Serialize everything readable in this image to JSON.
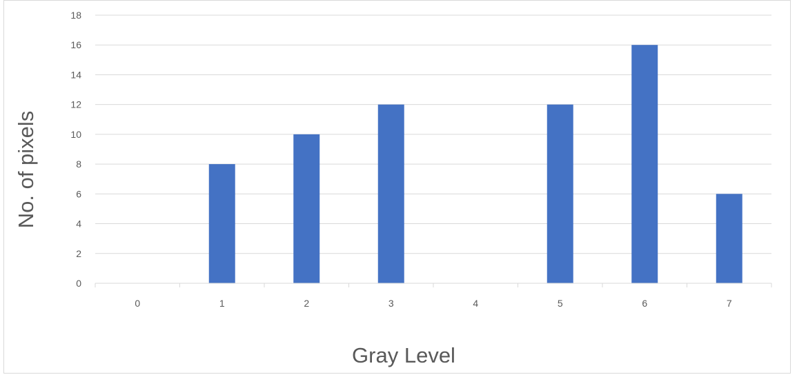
{
  "chart_data": {
    "type": "bar",
    "categories": [
      "0",
      "1",
      "2",
      "3",
      "4",
      "5",
      "6",
      "7"
    ],
    "values": [
      0,
      8,
      10,
      12,
      0,
      12,
      16,
      6
    ],
    "title": "",
    "xlabel": "Gray Level",
    "ylabel": "No. of pixels",
    "ylim": [
      0,
      18
    ],
    "yticks": [
      "0",
      "2",
      "4",
      "6",
      "8",
      "10",
      "12",
      "14",
      "16",
      "18"
    ],
    "grid": "horizontal",
    "legend": "none",
    "bar_color": "#4472C4",
    "grid_color": "#d9d9d9",
    "text_color": "#595959"
  }
}
